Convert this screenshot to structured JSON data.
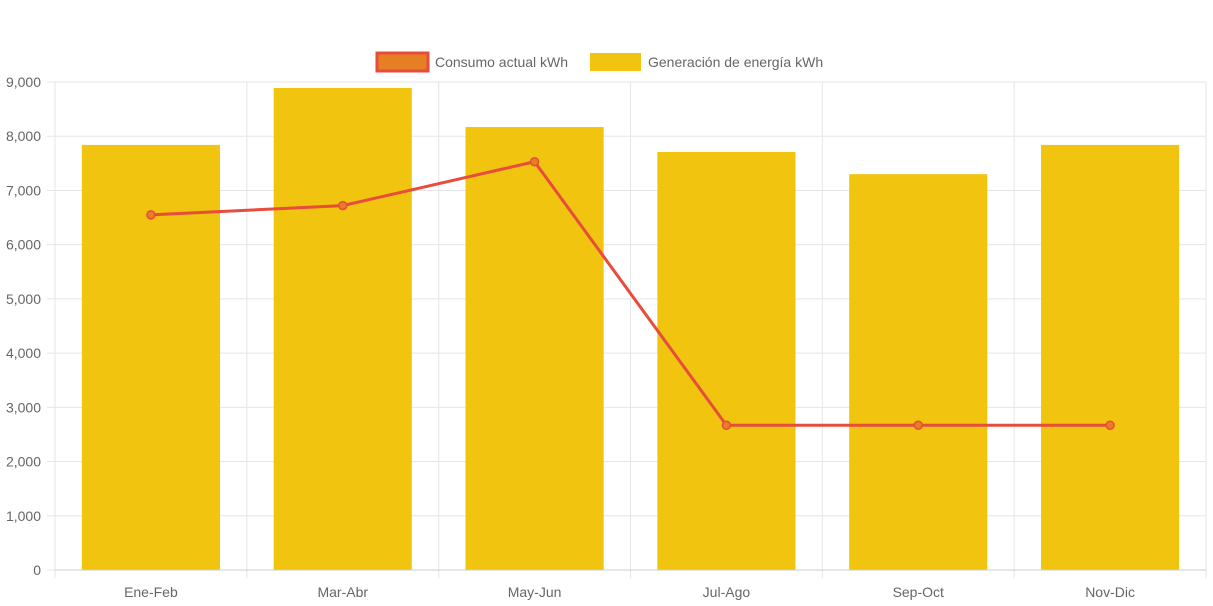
{
  "chart_data": {
    "type": "bar",
    "categories": [
      "Ene-Feb",
      "Mar-Abr",
      "May-Jun",
      "Jul-Ago",
      "Sep-Oct",
      "Nov-Dic"
    ],
    "series": [
      {
        "name": "Consumo actual kWh",
        "type": "line",
        "values": [
          6550,
          6720,
          7530,
          2670,
          2670,
          2670
        ]
      },
      {
        "name": "Generación de energía kWh",
        "type": "bar",
        "values": [
          7840,
          8890,
          8170,
          7710,
          7300,
          7840
        ]
      }
    ],
    "title": "",
    "xlabel": "",
    "ylabel": "",
    "ylim": [
      0,
      9000
    ],
    "yticks": [
      "0",
      "1,000",
      "2,000",
      "3,000",
      "4,000",
      "5,000",
      "6,000",
      "7,000",
      "8,000",
      "9,000"
    ],
    "grid": true,
    "legend_position": "top-center",
    "colors": {
      "line": "#e74c3c",
      "line_point_fill": "#e67e22",
      "bar": "#f1c40f",
      "grid": "#e5e5e5",
      "text": "#666666"
    }
  }
}
